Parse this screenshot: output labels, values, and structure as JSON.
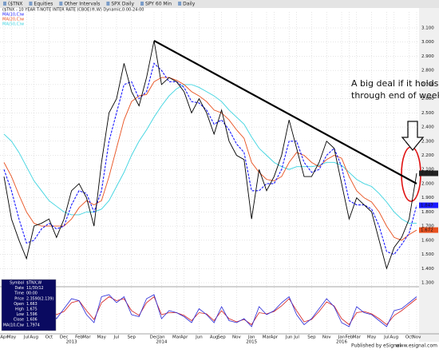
{
  "toolbar": [
    "($TNX",
    "Equities",
    "Other Intervals",
    "SPX Daily",
    "SPY 60 Min",
    "Daily"
  ],
  "chart_data": {
    "type": "line",
    "title": "($TNX - 10 YEAR T-NOTE INTER RATE (CBOE)®,W) Dynamic,0:00-24:00",
    "xlim": [
      0,
      55
    ],
    "xticks": [
      {
        "value": 0,
        "label": "Apr"
      },
      {
        "value": 1,
        "label": "May"
      },
      {
        "value": 3,
        "label": "Jul"
      },
      {
        "value": 4,
        "label": "Aug"
      },
      {
        "value": 6,
        "label": "Oct"
      },
      {
        "value": 8,
        "label": "Dec"
      },
      {
        "value": 10,
        "label": "Feb"
      },
      {
        "value": 11,
        "label": "Mar"
      },
      {
        "value": 13,
        "label": "May"
      },
      {
        "value": 15,
        "label": "Jul"
      },
      {
        "value": 17,
        "label": "Sep"
      },
      {
        "value": 20,
        "label": "Dec"
      },
      {
        "value": 21,
        "label": "Jan"
      },
      {
        "value": 23,
        "label": "Mar"
      },
      {
        "value": 24,
        "label": "Apr"
      },
      {
        "value": 26,
        "label": "Jun"
      },
      {
        "value": 28,
        "label": "Aug"
      },
      {
        "value": 29,
        "label": "Sep"
      },
      {
        "value": 31,
        "label": "Nov"
      },
      {
        "value": 33,
        "label": "Jan"
      },
      {
        "value": 35,
        "label": "Mar"
      },
      {
        "value": 36,
        "label": "Apr"
      },
      {
        "value": 38,
        "label": "Jun"
      },
      {
        "value": 39,
        "label": "Jul"
      },
      {
        "value": 41,
        "label": "Sep"
      },
      {
        "value": 43,
        "label": "Nov"
      },
      {
        "value": 45,
        "label": "Jan"
      },
      {
        "value": 46,
        "label": "Feb"
      },
      {
        "value": 47,
        "label": "Mar"
      },
      {
        "value": 49,
        "label": "May"
      },
      {
        "value": 51,
        "label": "Jul"
      },
      {
        "value": 52,
        "label": "Aug"
      },
      {
        "value": 54,
        "label": "Oct"
      },
      {
        "value": 55,
        "label": "Nov"
      }
    ],
    "year_ticks": [
      {
        "value": 9,
        "label": "2013"
      },
      {
        "value": 21,
        "label": "2014"
      },
      {
        "value": 33,
        "label": "2015"
      },
      {
        "value": 45,
        "label": "2016"
      }
    ],
    "ylim": [
      1.3,
      3.1
    ],
    "yticks": [
      {
        "value": 1.3,
        "label": "1.300"
      },
      {
        "value": 1.4,
        "label": "1.400"
      },
      {
        "value": 1.5,
        "label": "1.500"
      },
      {
        "value": 1.6,
        "label": "1.600"
      },
      {
        "value": 1.7,
        "label": "1.700"
      },
      {
        "value": 1.8,
        "label": "1.800"
      },
      {
        "value": 1.9,
        "label": "1.900"
      },
      {
        "value": 2.0,
        "label": "2.000"
      },
      {
        "value": 2.1,
        "label": "2.100"
      },
      {
        "value": 2.2,
        "label": "2.200"
      },
      {
        "value": 2.3,
        "label": "2.300"
      },
      {
        "value": 2.4,
        "label": "2.400"
      },
      {
        "value": 2.5,
        "label": "2.500"
      },
      {
        "value": 2.6,
        "label": "2.600"
      },
      {
        "value": 2.7,
        "label": "2.700"
      },
      {
        "value": 2.8,
        "label": "2.800"
      },
      {
        "value": 2.9,
        "label": "2.900"
      },
      {
        "value": 3.0,
        "label": "3.000"
      },
      {
        "value": 3.1,
        "label": "3.100"
      }
    ],
    "grid": true,
    "series": [
      {
        "color": "#000000",
        "last_label": "2.073",
        "values": [
          2.05,
          1.75,
          1.6,
          1.47,
          1.7,
          1.72,
          1.75,
          1.62,
          1.75,
          1.95,
          2.0,
          1.9,
          1.7,
          2.15,
          2.5,
          2.6,
          2.85,
          2.65,
          2.55,
          2.75,
          3.01,
          2.7,
          2.75,
          2.72,
          2.65,
          2.5,
          2.6,
          2.5,
          2.35,
          2.52,
          2.3,
          2.2,
          2.17,
          1.75,
          2.1,
          1.95,
          2.05,
          2.2,
          2.45,
          2.25,
          2.05,
          2.05,
          2.15,
          2.3,
          2.25,
          2.0,
          1.75,
          1.9,
          1.85,
          1.8,
          1.6,
          1.4,
          1.55,
          1.62,
          1.75,
          2.073
        ]
      },
      {
        "name": "MA(10,C)w",
        "color": "#1a1aff",
        "dash": true,
        "last_label": "1.847",
        "values": [
          2.1,
          1.95,
          1.75,
          1.58,
          1.6,
          1.68,
          1.72,
          1.68,
          1.7,
          1.85,
          1.95,
          1.93,
          1.8,
          1.95,
          2.3,
          2.5,
          2.7,
          2.72,
          2.6,
          2.65,
          2.85,
          2.8,
          2.72,
          2.72,
          2.68,
          2.58,
          2.57,
          2.52,
          2.42,
          2.45,
          2.38,
          2.28,
          2.22,
          1.95,
          1.95,
          2.0,
          2.0,
          2.1,
          2.3,
          2.3,
          2.15,
          2.08,
          2.1,
          2.2,
          2.25,
          2.12,
          1.88,
          1.85,
          1.85,
          1.82,
          1.7,
          1.52,
          1.5,
          1.57,
          1.65,
          1.847
        ]
      },
      {
        "name": "MA(20,C)w",
        "color": "#e8501e",
        "last_label": "1.672",
        "values": [
          2.15,
          2.05,
          1.92,
          1.8,
          1.72,
          1.7,
          1.7,
          1.7,
          1.7,
          1.75,
          1.83,
          1.88,
          1.85,
          1.88,
          2.05,
          2.25,
          2.45,
          2.58,
          2.62,
          2.63,
          2.72,
          2.75,
          2.75,
          2.73,
          2.7,
          2.65,
          2.62,
          2.58,
          2.52,
          2.5,
          2.45,
          2.38,
          2.32,
          2.15,
          2.08,
          2.03,
          2.02,
          2.05,
          2.15,
          2.22,
          2.2,
          2.15,
          2.12,
          2.17,
          2.2,
          2.18,
          2.05,
          1.95,
          1.9,
          1.87,
          1.8,
          1.7,
          1.62,
          1.6,
          1.64,
          1.672
        ]
      },
      {
        "name": "MA(50,C)w",
        "color": "#3cd4e0",
        "values": [
          2.35,
          2.3,
          2.22,
          2.12,
          2.02,
          1.95,
          1.88,
          1.84,
          1.8,
          1.78,
          1.78,
          1.8,
          1.8,
          1.82,
          1.88,
          1.98,
          2.08,
          2.2,
          2.3,
          2.38,
          2.47,
          2.55,
          2.62,
          2.67,
          2.7,
          2.7,
          2.68,
          2.65,
          2.62,
          2.58,
          2.52,
          2.47,
          2.42,
          2.33,
          2.25,
          2.2,
          2.15,
          2.12,
          2.1,
          2.12,
          2.12,
          2.12,
          2.13,
          2.15,
          2.15,
          2.13,
          2.08,
          2.03,
          2.0,
          1.98,
          1.93,
          1.87,
          1.8,
          1.75,
          1.72,
          1.72
        ]
      }
    ],
    "trendline": {
      "x": [
        20,
        55
      ],
      "y": [
        3.01,
        2.0
      ]
    },
    "annotation": [
      "A big deal if it holds up",
      "through end of week..."
    ],
    "oscillator": {
      "ylim": [
        0,
        100
      ],
      "series": [
        {
          "color": "#d42020",
          "values": [
            75,
            45,
            20,
            12,
            35,
            60,
            62,
            40,
            48,
            70,
            75,
            50,
            28,
            70,
            85,
            75,
            80,
            50,
            38,
            70,
            85,
            40,
            45,
            45,
            38,
            25,
            45,
            42,
            25,
            50,
            30,
            22,
            28,
            15,
            45,
            42,
            48,
            62,
            80,
            50,
            22,
            28,
            48,
            72,
            62,
            30,
            15,
            45,
            48,
            42,
            30,
            15,
            38,
            50,
            65,
            80
          ]
        },
        {
          "color": "#2a2ad8",
          "values": [
            80,
            30,
            15,
            10,
            50,
            70,
            60,
            30,
            55,
            80,
            75,
            40,
            20,
            85,
            90,
            70,
            85,
            40,
            35,
            80,
            90,
            30,
            50,
            45,
            35,
            20,
            55,
            40,
            20,
            60,
            25,
            20,
            30,
            10,
            60,
            40,
            50,
            70,
            85,
            40,
            15,
            30,
            55,
            80,
            60,
            20,
            10,
            60,
            45,
            40,
            25,
            10,
            50,
            55,
            70,
            85
          ]
        }
      ]
    }
  },
  "data_box": [
    [
      "Symbol",
      "$TNX,W"
    ],
    [
      "Date",
      "11/30/12"
    ],
    [
      "Time",
      "00:00"
    ],
    [
      "Price",
      "2.3590(2.139)"
    ],
    [
      "Open",
      "1.663"
    ],
    [
      "High",
      "1.675"
    ],
    [
      "Low",
      "1.596"
    ],
    [
      "Close",
      "1.606"
    ],
    [
      "MA(10,C)w",
      "1.7974"
    ]
  ],
  "footer": {
    "left": "Published by eSignal",
    "right": "www.esignal.com"
  }
}
